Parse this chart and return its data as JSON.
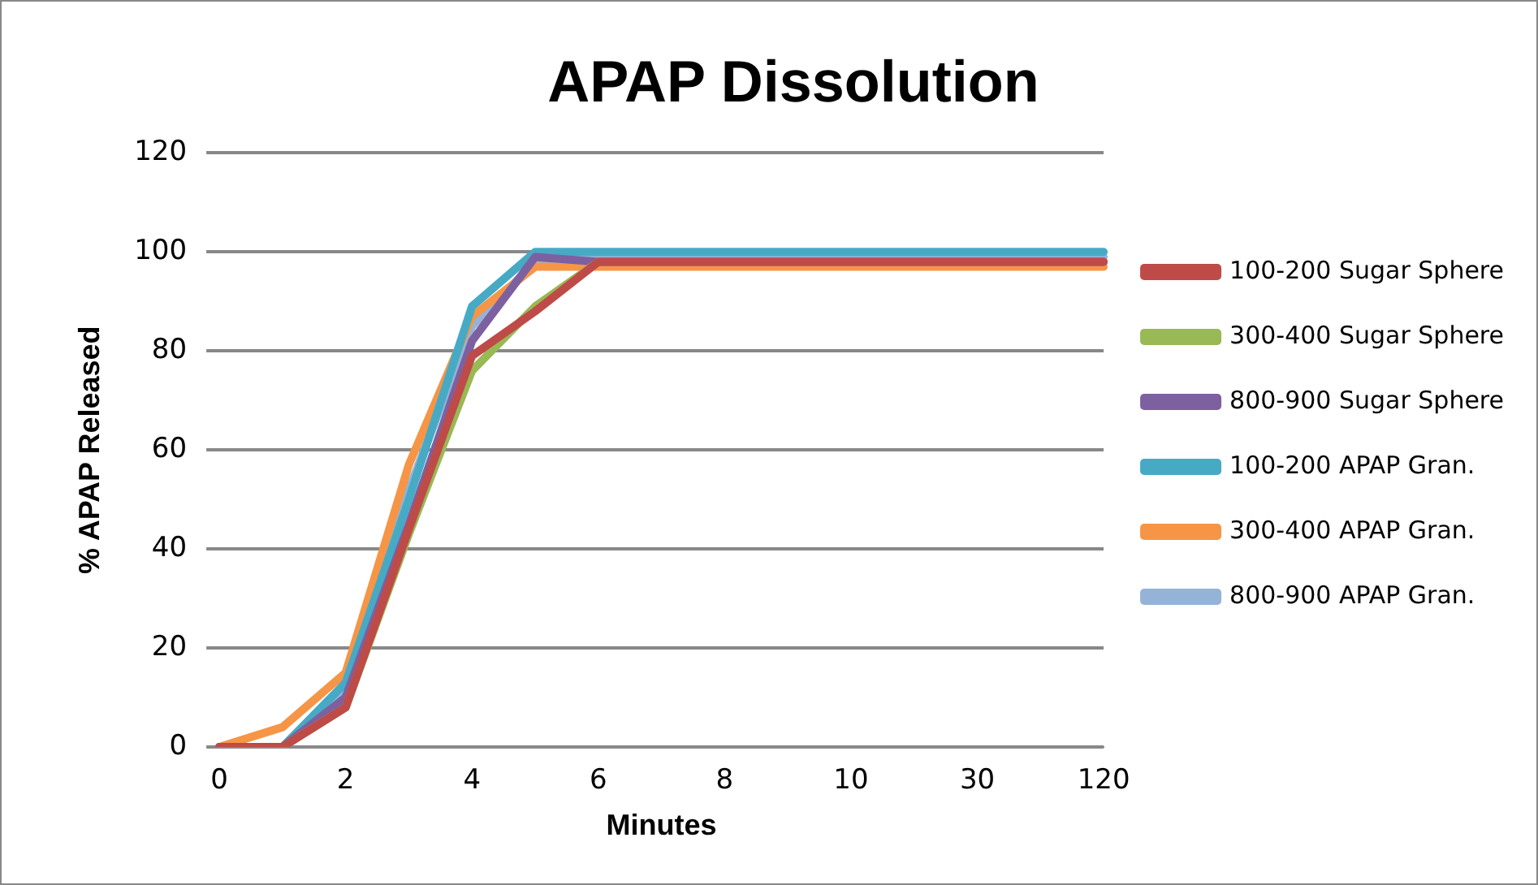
{
  "chart_data": {
    "type": "line",
    "title": "APAP Dissolution",
    "xlabel": "Minutes",
    "ylabel": "% APAP Released",
    "categories": [
      "0",
      null,
      "2",
      null,
      "4",
      null,
      "6",
      null,
      "8",
      null,
      "10",
      null,
      "30",
      null,
      "120"
    ],
    "ylim": [
      0,
      120
    ],
    "yticks": [
      0,
      20,
      40,
      60,
      80,
      100,
      120
    ],
    "grid": "y",
    "legend": "right",
    "marker": "none",
    "line_style": "solid",
    "series": [
      {
        "name": "100-200 Sugar Sphere",
        "color": "#be4b48",
        "values": [
          0,
          0,
          8,
          44,
          79,
          88,
          98,
          98,
          98,
          98,
          98,
          98,
          98,
          98,
          98
        ]
      },
      {
        "name": "300-400 Sugar Sphere",
        "color": "#98b954",
        "values": [
          null,
          0,
          8,
          43,
          76,
          89,
          98,
          null,
          null,
          null,
          null,
          null,
          null,
          null,
          null
        ]
      },
      {
        "name": "800-900 Sugar Sphere",
        "color": "#7d60a0",
        "values": [
          0,
          0,
          10,
          45,
          82,
          99,
          98,
          98,
          98,
          98,
          98,
          98,
          98,
          98,
          98
        ]
      },
      {
        "name": "100-200 APAP Gran.",
        "color": "#46aac5",
        "values": [
          0,
          0,
          13,
          50,
          89,
          100,
          100,
          100,
          100,
          100,
          100,
          100,
          100,
          100,
          100
        ]
      },
      {
        "name": "300-400 APAP Gran.",
        "color": "#f69546",
        "values": [
          0,
          4,
          15,
          57,
          87,
          97,
          97,
          97,
          97,
          97,
          97,
          97,
          97,
          97,
          97
        ]
      },
      {
        "name": "800-900 APAP Gran.",
        "color": "#95b3d7",
        "values": [
          0,
          0,
          11,
          52,
          85,
          98,
          99,
          99,
          99,
          99,
          99,
          99,
          99,
          99,
          99
        ]
      }
    ]
  }
}
